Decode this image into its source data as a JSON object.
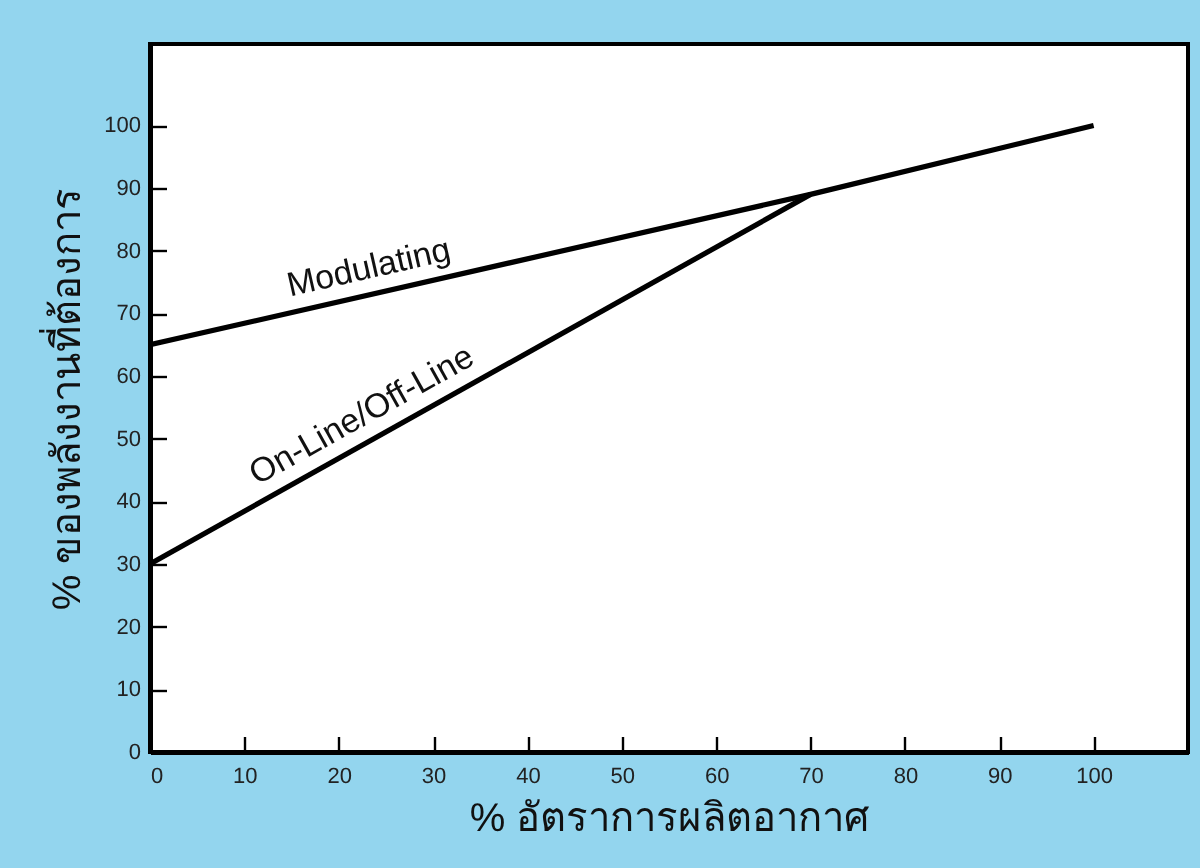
{
  "chart_data": {
    "type": "line",
    "xlabel": "% อัตราการผลิตอากาศ",
    "ylabel": "% ของพลังงานที่ต้องการ",
    "series": [
      {
        "color": "#000000",
        "x": [
          0,
          70,
          100
        ],
        "values": [
          65,
          89,
          100
        ]
      },
      {
        "color": "#000000",
        "x": [
          0,
          70
        ],
        "values": [
          30,
          89
        ]
      }
    ],
    "annotations": [
      "Modulating",
      "On-Line/Off-Line"
    ],
    "xlim": [
      0,
      110
    ],
    "ylim": [
      0,
      113
    ],
    "xticks": [
      0,
      10,
      20,
      30,
      40,
      50,
      60,
      70,
      80,
      90,
      100
    ],
    "yticks": [
      0,
      10,
      20,
      30,
      40,
      50,
      60,
      70,
      80,
      90,
      100
    ],
    "grid": false,
    "legend": false,
    "marker": "none",
    "line_style": "solid"
  }
}
